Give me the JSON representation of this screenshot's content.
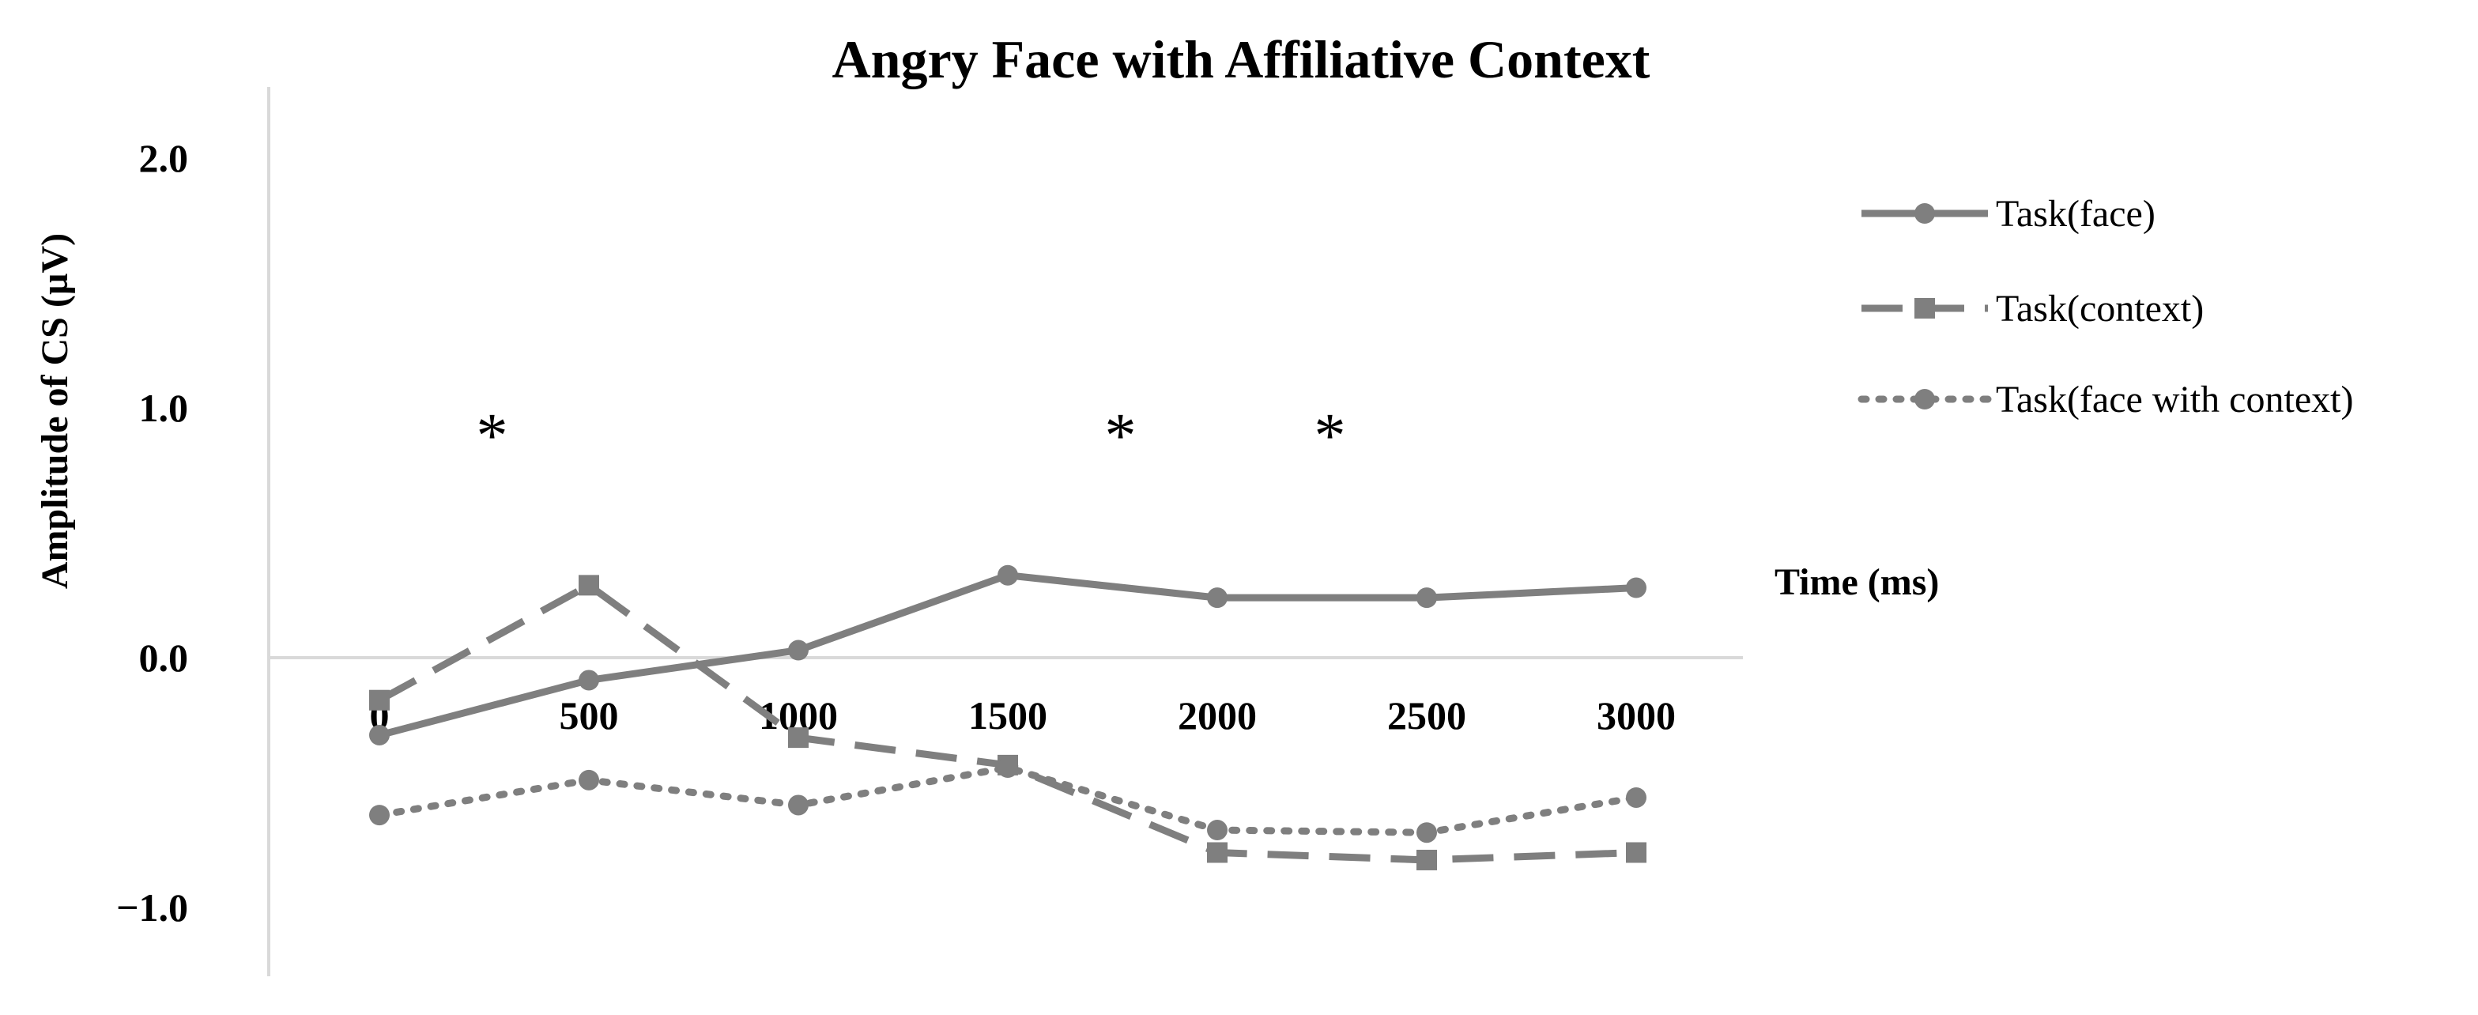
{
  "chart_data": {
    "type": "line",
    "title": "Angry Face with Affiliative Context",
    "xlabel": "Time (ms)",
    "ylabel": "Amplitude of CS (µV)",
    "x": [
      0,
      500,
      1000,
      1500,
      2000,
      2500,
      3000
    ],
    "x_tick_labels": [
      "0",
      "500",
      "1000",
      "1500",
      "2000",
      "2500",
      "3000"
    ],
    "y_tick_labels": [
      "2.0",
      "1.0",
      "0.0",
      "−1.0"
    ],
    "y_ticks": [
      2.0,
      1.0,
      0.0,
      -1.0
    ],
    "ylim": [
      -1.25,
      2.3
    ],
    "grid": false,
    "legend_position": "right",
    "series": [
      {
        "name": "Task(face)",
        "style": "solid",
        "marker": "circle",
        "color": "#7f7f7f",
        "values": [
          -0.31,
          -0.09,
          0.03,
          0.33,
          0.24,
          0.24,
          0.28
        ]
      },
      {
        "name": "Task(context)",
        "style": "dashed",
        "marker": "square",
        "color": "#7f7f7f",
        "values": [
          -0.17,
          0.29,
          -0.32,
          -0.43,
          -0.78,
          -0.81,
          -0.78
        ]
      },
      {
        "name": "Task(face with context)",
        "style": "dotted",
        "marker": "circle",
        "color": "#7f7f7f",
        "values": [
          -0.63,
          -0.49,
          -0.59,
          -0.44,
          -0.69,
          -0.7,
          -0.56
        ]
      }
    ],
    "annotations": [
      {
        "text": "*",
        "x": 250,
        "y": 0.97
      },
      {
        "text": "*",
        "x": 1750,
        "y": 0.97
      },
      {
        "text": "*",
        "x": 2250,
        "y": 0.97
      }
    ]
  }
}
